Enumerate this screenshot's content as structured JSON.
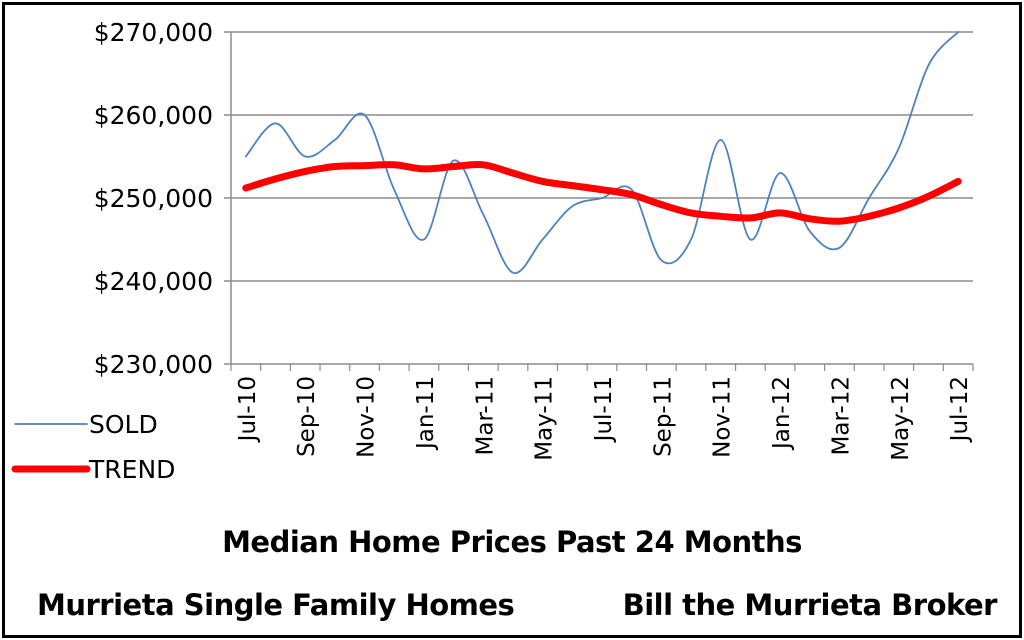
{
  "chart_data": {
    "type": "line",
    "x": [
      "Jul-10",
      "Aug-10",
      "Sep-10",
      "Oct-10",
      "Nov-10",
      "Dec-10",
      "Jan-11",
      "Feb-11",
      "Mar-11",
      "Apr-11",
      "May-11",
      "Jun-11",
      "Jul-11",
      "Aug-11",
      "Sep-11",
      "Oct-11",
      "Nov-11",
      "Dec-11",
      "Jan-12",
      "Feb-12",
      "Mar-12",
      "Apr-12",
      "May-12",
      "Jun-12",
      "Jul-12"
    ],
    "xtick_labels": [
      "Jul-10",
      "Sep-10",
      "Nov-10",
      "Jan-11",
      "Mar-11",
      "May-11",
      "Jul-11",
      "Sep-11",
      "Nov-11",
      "Jan-12",
      "Mar-12",
      "May-12",
      "Jul-12"
    ],
    "ytick_labels": [
      "$270,000",
      "$260,000",
      "$250,000",
      "$240,000",
      "$230,000"
    ],
    "ylim": [
      230000,
      270000
    ],
    "series": [
      {
        "name": "SOLD",
        "color": "#4f81bd",
        "values": [
          255000,
          259000,
          255000,
          257000,
          260000,
          251000,
          245000,
          254500,
          248000,
          241000,
          245000,
          249000,
          250000,
          251000,
          242500,
          245000,
          257000,
          245000,
          253000,
          246000,
          244000,
          250000,
          256000,
          266000,
          270000
        ]
      },
      {
        "name": "TREND",
        "color": "#ff0000",
        "values": [
          251200,
          252300,
          253200,
          253800,
          253900,
          254000,
          253500,
          253800,
          254000,
          253000,
          252000,
          251500,
          251000,
          250400,
          249200,
          248200,
          247800,
          247600,
          248200,
          247500,
          247200,
          247800,
          248800,
          250200,
          252000
        ]
      }
    ],
    "grid": true,
    "legend": "bottom-left",
    "title": "Median Home Prices Past 24  Months",
    "captions": {
      "left": "Murrieta Single Family Homes",
      "right": "Bill the Murrieta Broker"
    }
  }
}
